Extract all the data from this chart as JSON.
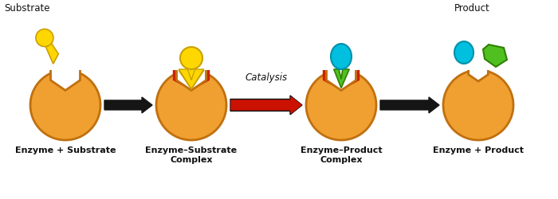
{
  "enzyme_color": "#F0A030",
  "enzyme_edge_color": "#C07010",
  "enzyme_light": "#F8C878",
  "substrate_yellow": "#FFD700",
  "substrate_yellow_edge": "#C8A000",
  "product_cyan": "#00BFDF",
  "product_cyan_edge": "#0090AA",
  "product_green": "#50C020",
  "product_green_edge": "#308000",
  "active_site_red": "#CC2200",
  "arrow_black": "#151515",
  "arrow_red": "#CC1100",
  "text_color": "#111111",
  "labels": [
    "Enzyme + Substrate",
    "Enzyme–Substrate\nComplex",
    "Enzyme–Product\nComplex",
    "Enzyme + Product"
  ],
  "substrate_label": "Substrate",
  "product_label": "Product",
  "catalysis_label": "Catalysis"
}
